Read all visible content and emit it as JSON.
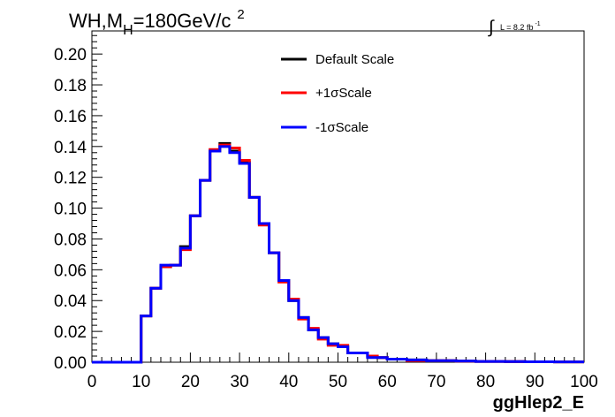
{
  "title": {
    "main": "WH,M",
    "sub": "H",
    "value": "=180GeV/c",
    "sup": "2"
  },
  "luminosity": {
    "symbol": "∫",
    "text": "L = 8.2 fb",
    "sup": "-1"
  },
  "chart_data": {
    "type": "line",
    "style": "step-histogram",
    "xlabel": "ggHlep2_E",
    "ylabel": "",
    "xlim": [
      0,
      100
    ],
    "ylim": [
      0,
      0.215
    ],
    "xticks": [
      0,
      10,
      20,
      30,
      40,
      50,
      60,
      70,
      80,
      90,
      100
    ],
    "xtick_labels": [
      "0",
      "10",
      "20",
      "30",
      "40",
      "50",
      "60",
      "70",
      "80",
      "90",
      "100"
    ],
    "yticks": [
      0,
      0.02,
      0.04,
      0.06,
      0.08,
      0.1,
      0.12,
      0.14,
      0.16,
      0.18,
      0.2
    ],
    "ytick_labels": [
      "0.00",
      "0.02",
      "0.04",
      "0.06",
      "0.08",
      "0.10",
      "0.12",
      "0.14",
      "0.16",
      "0.18",
      "0.20"
    ],
    "bin_edges": [
      0,
      2,
      4,
      6,
      8,
      10,
      12,
      14,
      16,
      18,
      20,
      22,
      24,
      26,
      28,
      30,
      32,
      34,
      36,
      38,
      40,
      42,
      44,
      46,
      48,
      50,
      52,
      54,
      56,
      58,
      60,
      62,
      64,
      66,
      68,
      70,
      72,
      74,
      76,
      78,
      80,
      82,
      84,
      86,
      88,
      90,
      92,
      94,
      96,
      98,
      100
    ],
    "legend_position": "top-center",
    "grid": false,
    "series": [
      {
        "name": "Default Scale",
        "color": "#000000",
        "values": [
          0,
          0,
          0,
          0,
          0,
          0.03,
          0.048,
          0.062,
          0.063,
          0.075,
          0.095,
          0.118,
          0.137,
          0.142,
          0.137,
          0.13,
          0.107,
          0.09,
          0.071,
          0.053,
          0.04,
          0.029,
          0.021,
          0.016,
          0.012,
          0.01,
          0.006,
          0.006,
          0.004,
          0.003,
          0.002,
          0.002,
          0.0015,
          0.0015,
          0.001,
          0.001,
          0.001,
          0.0008,
          0.0008,
          0.0005,
          0.0005,
          0.0005,
          0.0004,
          0.0004,
          0.0003,
          0.0003,
          0.0003,
          0.0002,
          0.0002,
          0.0002
        ]
      },
      {
        "name": "+1σScale",
        "color": "#ff0000",
        "values": [
          0,
          0,
          0,
          0,
          0,
          0.03,
          0.048,
          0.062,
          0.063,
          0.073,
          0.095,
          0.118,
          0.138,
          0.141,
          0.139,
          0.131,
          0.107,
          0.089,
          0.071,
          0.052,
          0.041,
          0.028,
          0.022,
          0.015,
          0.011,
          0.011,
          0.006,
          0.006,
          0.004,
          0.003,
          0.002,
          0.002,
          0.001,
          0.001,
          0.001,
          0.001,
          0.001,
          0.0007,
          0.0007,
          0.0005,
          0.0005,
          0.0005,
          0.0004,
          0.0004,
          0.0003,
          0.0003,
          0.0003,
          0.0002,
          0.0002,
          0.0002
        ]
      },
      {
        "name": "-1σScale",
        "color": "#0000ff",
        "values": [
          0,
          0,
          0,
          0,
          0,
          0.03,
          0.048,
          0.063,
          0.063,
          0.074,
          0.095,
          0.118,
          0.137,
          0.14,
          0.136,
          0.129,
          0.107,
          0.09,
          0.071,
          0.053,
          0.04,
          0.029,
          0.021,
          0.016,
          0.012,
          0.01,
          0.006,
          0.006,
          0.003,
          0.003,
          0.002,
          0.002,
          0.0015,
          0.0015,
          0.001,
          0.001,
          0.001,
          0.0008,
          0.0008,
          0.0005,
          0.0005,
          0.0005,
          0.0004,
          0.0004,
          0.0003,
          0.0003,
          0.0003,
          0.0002,
          0.0002,
          0.0002
        ]
      }
    ]
  }
}
